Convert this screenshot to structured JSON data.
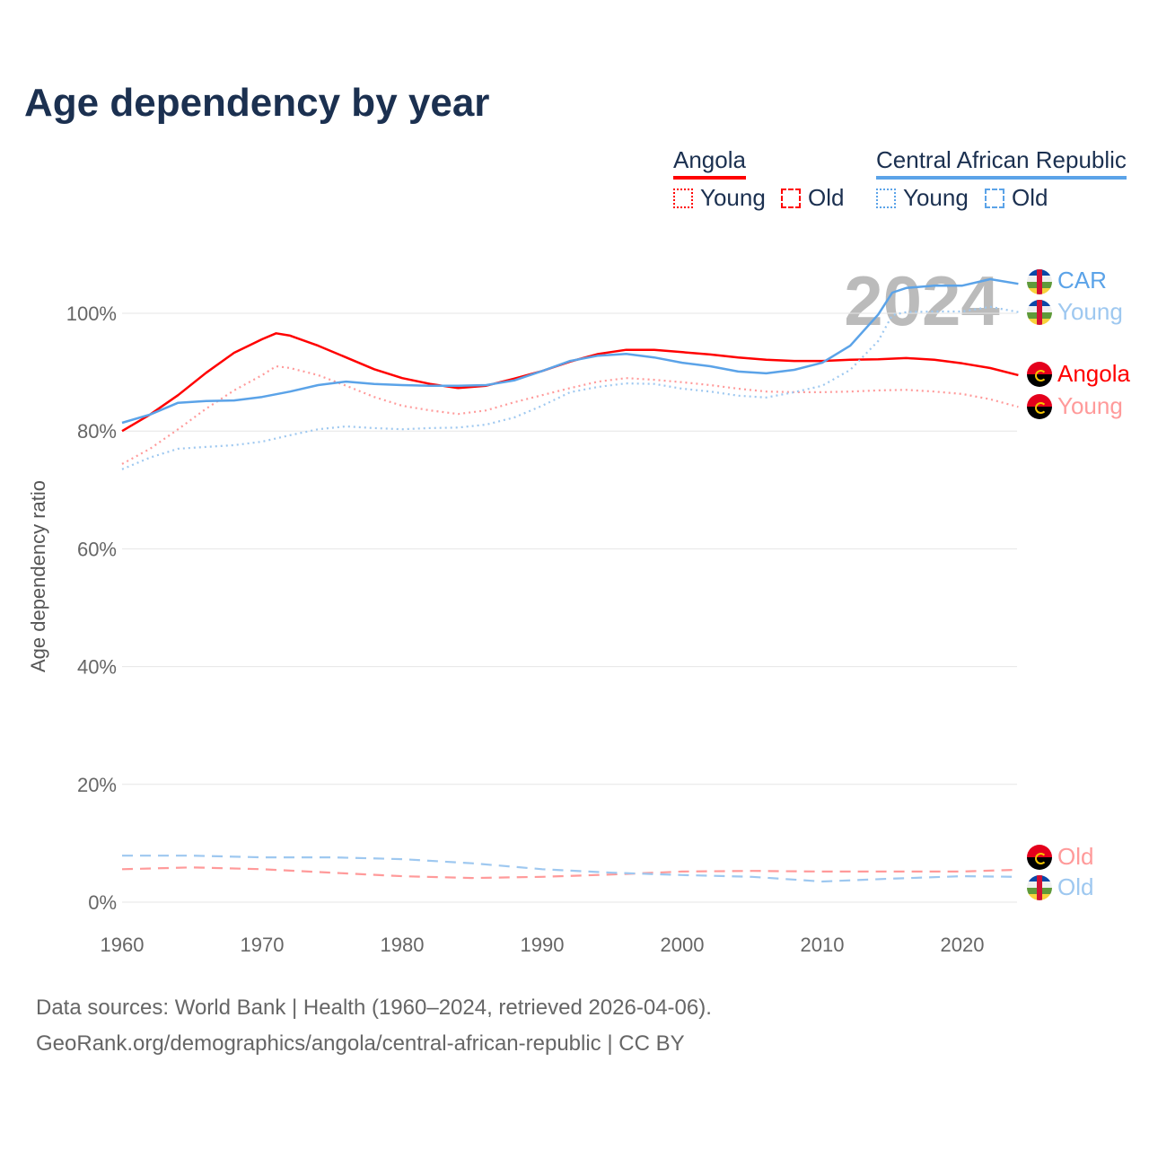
{
  "title": "Age dependency by year",
  "legend": {
    "countries": [
      {
        "name": "Angola",
        "color": "#ff0000",
        "young": "Young",
        "old": "Old"
      },
      {
        "name": "Central African Republic",
        "color": "#5ba3e8",
        "young": "Young",
        "old": "Old"
      }
    ]
  },
  "year_watermark": "2024",
  "end_labels": {
    "car": "CAR",
    "car_young": "Young",
    "angola": "Angola",
    "angola_young": "Young",
    "angola_old": "Old",
    "car_old": "Old"
  },
  "source": {
    "line1": "Data sources: World Bank | Health (1960–2024, retrieved 2026-04-06).",
    "line2": "GeoRank.org/demographics/angola/central-african-republic | CC BY"
  },
  "chart_data": {
    "type": "line",
    "title": "Age dependency by year",
    "xlabel": "",
    "ylabel": "Age dependency ratio",
    "xlim": [
      1960,
      2024
    ],
    "ylim": [
      0,
      110
    ],
    "xticks": [
      1960,
      1970,
      1980,
      1990,
      2000,
      2010,
      2020
    ],
    "yticks": [
      0,
      20,
      40,
      60,
      80,
      100
    ],
    "ytick_labels": [
      "0%",
      "20%",
      "40%",
      "60%",
      "80%",
      "100%"
    ],
    "grid": true,
    "legend_position": "top-right",
    "series": [
      {
        "name": "Angola",
        "style": "solid",
        "color": "#ff0000",
        "x": [
          1960,
          1962,
          1964,
          1966,
          1968,
          1970,
          1971,
          1972,
          1974,
          1976,
          1978,
          1980,
          1982,
          1984,
          1986,
          1988,
          1990,
          1992,
          1994,
          1996,
          1998,
          2000,
          2002,
          2004,
          2006,
          2008,
          2010,
          2012,
          2014,
          2016,
          2018,
          2020,
          2022,
          2024
        ],
        "y": [
          80.0,
          82.8,
          86.1,
          89.9,
          93.3,
          95.6,
          96.6,
          96.2,
          94.5,
          92.5,
          90.5,
          89.0,
          88.0,
          87.3,
          87.7,
          88.9,
          90.2,
          91.8,
          93.1,
          93.8,
          93.8,
          93.4,
          93.0,
          92.5,
          92.1,
          91.9,
          91.9,
          92.1,
          92.2,
          92.4,
          92.1,
          91.5,
          90.7,
          89.5
        ]
      },
      {
        "name": "Angola Young",
        "style": "dotted",
        "color": "#ff9a9a",
        "x": [
          1960,
          1962,
          1964,
          1966,
          1968,
          1970,
          1971,
          1972,
          1974,
          1976,
          1978,
          1980,
          1982,
          1984,
          1986,
          1988,
          1990,
          1992,
          1994,
          1996,
          1998,
          2000,
          2002,
          2004,
          2006,
          2008,
          2010,
          2012,
          2014,
          2016,
          2018,
          2020,
          2022,
          2024
        ],
        "y": [
          74.4,
          77.0,
          80.3,
          83.8,
          86.9,
          89.5,
          91.0,
          90.7,
          89.5,
          87.7,
          85.8,
          84.3,
          83.5,
          82.9,
          83.5,
          84.9,
          86.1,
          87.3,
          88.4,
          89.0,
          88.7,
          88.3,
          87.8,
          87.2,
          86.7,
          86.6,
          86.6,
          86.7,
          86.9,
          87.0,
          86.7,
          86.3,
          85.4,
          84.1
        ]
      },
      {
        "name": "Angola Old",
        "style": "dashed",
        "color": "#ff9a9a",
        "x": [
          1960,
          1965,
          1970,
          1975,
          1980,
          1985,
          1990,
          1995,
          2000,
          2005,
          2010,
          2015,
          2020,
          2024
        ],
        "y": [
          5.6,
          5.9,
          5.6,
          5.0,
          4.4,
          4.1,
          4.3,
          4.7,
          5.2,
          5.3,
          5.2,
          5.2,
          5.2,
          5.5
        ]
      },
      {
        "name": "CAR",
        "style": "solid",
        "color": "#5ba3e8",
        "x": [
          1960,
          1962,
          1964,
          1966,
          1968,
          1970,
          1972,
          1974,
          1976,
          1978,
          1980,
          1982,
          1984,
          1986,
          1988,
          1990,
          1992,
          1994,
          1996,
          1998,
          2000,
          2002,
          2004,
          2006,
          2008,
          2010,
          2012,
          2014,
          2015,
          2016,
          2018,
          2020,
          2022,
          2024
        ],
        "y": [
          81.4,
          82.8,
          84.8,
          85.1,
          85.2,
          85.8,
          86.7,
          87.8,
          88.4,
          88.0,
          87.8,
          87.7,
          87.7,
          87.8,
          88.6,
          90.2,
          91.9,
          92.8,
          93.1,
          92.5,
          91.6,
          91.0,
          90.1,
          89.8,
          90.4,
          91.6,
          94.5,
          99.8,
          103.5,
          104.3,
          104.7,
          104.7,
          105.8,
          105.0
        ]
      },
      {
        "name": "CAR Young",
        "style": "dotted",
        "color": "#9ec8f0",
        "x": [
          1960,
          1962,
          1964,
          1966,
          1968,
          1970,
          1972,
          1974,
          1976,
          1978,
          1980,
          1982,
          1984,
          1986,
          1988,
          1990,
          1992,
          1994,
          1996,
          1998,
          2000,
          2002,
          2004,
          2006,
          2008,
          2010,
          2012,
          2014,
          2015,
          2016,
          2018,
          2020,
          2022,
          2024
        ],
        "y": [
          73.5,
          75.5,
          77.0,
          77.3,
          77.6,
          78.2,
          79.3,
          80.3,
          80.8,
          80.5,
          80.3,
          80.5,
          80.6,
          81.1,
          82.3,
          84.3,
          86.6,
          87.5,
          88.1,
          88.0,
          87.2,
          86.7,
          86.0,
          85.7,
          86.6,
          87.7,
          90.4,
          95.3,
          99.7,
          100.2,
          100.3,
          100.3,
          101.1,
          100.2
        ]
      },
      {
        "name": "CAR Old",
        "style": "dashed",
        "color": "#9ec8f0",
        "x": [
          1960,
          1965,
          1970,
          1975,
          1980,
          1985,
          1990,
          1995,
          2000,
          2005,
          2010,
          2015,
          2020,
          2024
        ],
        "y": [
          7.9,
          7.9,
          7.6,
          7.6,
          7.3,
          6.6,
          5.6,
          5.0,
          4.6,
          4.3,
          3.5,
          4.0,
          4.4,
          4.3
        ]
      }
    ]
  }
}
